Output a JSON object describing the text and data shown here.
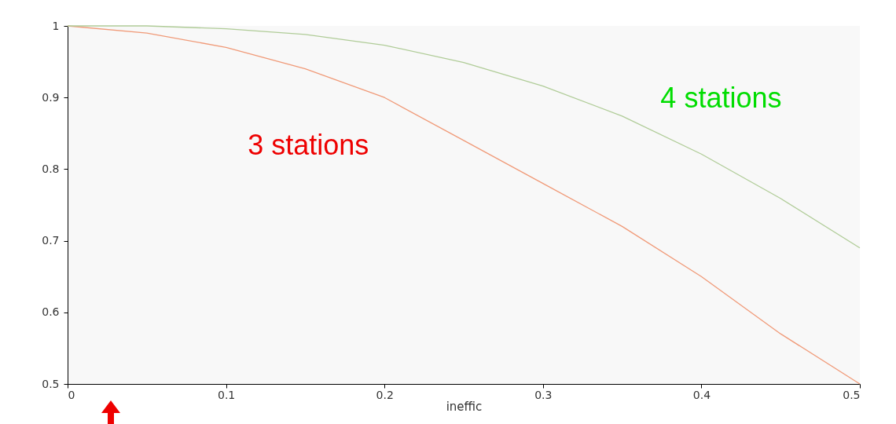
{
  "chart_data": {
    "type": "line",
    "xlabel": "ineffic",
    "xlim": [
      0,
      0.5
    ],
    "ylim": [
      0.5,
      1
    ],
    "xticks": [
      0,
      0.1,
      0.2,
      0.3,
      0.4,
      0.5
    ],
    "yticks": [
      0.5,
      0.6,
      0.7,
      0.8,
      0.9,
      1
    ],
    "grid": false,
    "legend": false,
    "x": [
      0,
      0.05,
      0.1,
      0.15,
      0.2,
      0.25,
      0.3,
      0.35,
      0.4,
      0.45,
      0.5
    ],
    "series": [
      {
        "name": "3 stations",
        "color": "#f09a78",
        "values": [
          1,
          0.99,
          0.97,
          0.94,
          0.9,
          0.84,
          0.78,
          0.72,
          0.65,
          0.57,
          0.5
        ]
      },
      {
        "name": "4 stations",
        "color": "#b0cc98",
        "values": [
          1,
          1,
          0.996,
          0.988,
          0.973,
          0.949,
          0.916,
          0.874,
          0.821,
          0.759,
          0.69
        ]
      }
    ]
  }
}
